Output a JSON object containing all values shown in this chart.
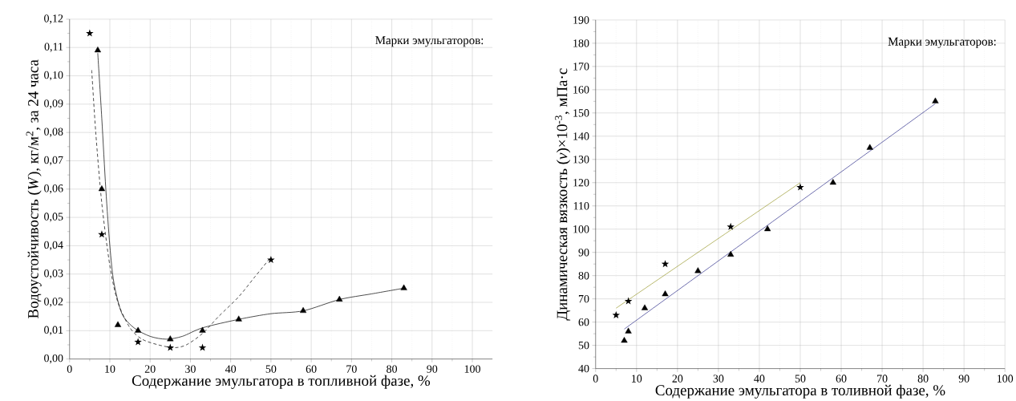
{
  "chart_data": [
    {
      "type": "scatter",
      "xlabel": "Содержание эмульгатора в топливной фазе, %",
      "ylabel": "Водоустойчивость (*W*), кг/м$^{2}$, за 24 часа",
      "legend_title": "Марки эмульгаторов:",
      "grid": true,
      "xlim": [
        0,
        105
      ],
      "xticks": [
        0,
        10,
        20,
        30,
        40,
        50,
        60,
        70,
        80,
        90,
        100
      ],
      "ylim": [
        0,
        0.12
      ],
      "yticks": [
        {
          "value": 0,
          "label": "0,00"
        },
        {
          "value": 0.01,
          "label": "0,01"
        },
        {
          "value": 0.02,
          "label": "0,02"
        },
        {
          "value": 0.03,
          "label": "0,03"
        },
        {
          "value": 0.04,
          "label": "0,04"
        },
        {
          "value": 0.05,
          "label": "0,05"
        },
        {
          "value": 0.06,
          "label": "0,06"
        },
        {
          "value": 0.07,
          "label": "0,07"
        },
        {
          "value": 0.08,
          "label": "0,08"
        },
        {
          "value": 0.09,
          "label": "0,09"
        },
        {
          "value": 0.1,
          "label": "0,10"
        },
        {
          "value": 0.11,
          "label": "0,11"
        },
        {
          "value": 0.12,
          "label": "0,12"
        }
      ],
      "series": [
        {
          "type": "line",
          "line_style": "dashed",
          "marker": "none",
          "color": "#000000",
          "x": [
            5.5,
            6.5,
            8,
            10,
            12,
            15,
            18,
            22,
            26,
            29,
            33,
            37,
            42,
            46,
            50
          ],
          "values": [
            0.102,
            0.08,
            0.055,
            0.033,
            0.02,
            0.011,
            0.007,
            0.005,
            0.004,
            0.005,
            0.009,
            0.015,
            0.022,
            0.029,
            0.036
          ]
        },
        {
          "type": "line",
          "line_style": "solid",
          "marker": "none",
          "color": "#000000",
          "x": [
            7,
            8,
            9,
            10,
            11,
            13,
            16,
            20,
            24,
            28,
            33,
            42,
            50,
            58,
            67,
            75,
            83
          ],
          "values": [
            0.108,
            0.085,
            0.06,
            0.04,
            0.027,
            0.016,
            0.011,
            0.008,
            0.007,
            0.008,
            0.011,
            0.014,
            0.016,
            0.017,
            0.021,
            0.023,
            0.025
          ]
        },
        {
          "marker": "star",
          "color": "#000000",
          "x": [
            5,
            8,
            17,
            25,
            33,
            50
          ],
          "values": [
            0.115,
            0.044,
            0.006,
            0.004,
            0.004,
            0.035
          ]
        },
        {
          "marker": "triangle",
          "color": "#000000",
          "x": [
            7,
            8,
            12,
            17,
            25,
            33,
            42,
            58,
            67,
            83
          ],
          "values": [
            0.109,
            0.06,
            0.012,
            0.01,
            0.007,
            0.01,
            0.014,
            0.017,
            0.021,
            0.025
          ]
        }
      ]
    },
    {
      "type": "scatter",
      "xlabel": "Содержание эмульгатора в толивной фазе, %",
      "ylabel": "Динамическая вязкость (*v*)×10$^{-3}$, мПа·с",
      "legend_title": "Марки эмульгаторов:",
      "grid": true,
      "xlim": [
        0,
        100
      ],
      "xticks": [
        0,
        10,
        20,
        30,
        40,
        50,
        60,
        70,
        80,
        90,
        100
      ],
      "ylim": [
        40,
        190
      ],
      "yticks": [
        40,
        50,
        60,
        70,
        80,
        90,
        100,
        110,
        120,
        130,
        140,
        150,
        160,
        170,
        180,
        190
      ],
      "series": [
        {
          "marker": "star",
          "color": "#000000",
          "x": [
            5,
            8,
            17,
            33,
            50
          ],
          "values": [
            63,
            69,
            85,
            101,
            118
          ]
        },
        {
          "marker": "triangle",
          "color": "#000000",
          "x": [
            7,
            8,
            12,
            17,
            25,
            33,
            42,
            58,
            67,
            83
          ],
          "values": [
            52,
            56,
            66,
            72,
            82,
            89,
            100,
            120,
            135,
            155
          ]
        },
        {
          "type": "line",
          "line_style": "solid",
          "marker": "none",
          "color": "#9a9a30",
          "x": [
            5,
            50
          ],
          "values": [
            66,
            120
          ]
        },
        {
          "type": "line",
          "line_style": "solid",
          "marker": "none",
          "color": "#2e2e8a",
          "x": [
            7,
            83
          ],
          "values": [
            57,
            154
          ]
        }
      ]
    }
  ]
}
